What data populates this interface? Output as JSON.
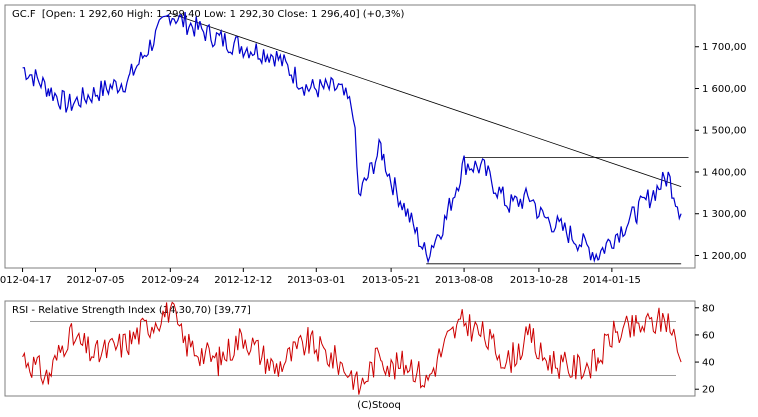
{
  "header": {
    "symbol": "GC.F",
    "ohlc_text": "[Open: 1 292,60  High: 1 299,40  Low: 1 292,30  Close: 1 296,40] (+0,3%)"
  },
  "rsi": {
    "label": "RSI - Relative Strength Index (14,30,70) [39,77]"
  },
  "footer": {
    "credit": "(C)Stooq"
  },
  "colors": {
    "price_line": "#0000cc",
    "rsi_line": "#cc0000",
    "trend": "#000000",
    "frame": "#7f7f7f"
  },
  "chart_data": [
    {
      "type": "line",
      "x_tick_labels": [
        "2012-04-17",
        "2012-07-05",
        "2012-09-24",
        "2012-12-12",
        "2013-03-01",
        "2013-05-21",
        "2013-08-08",
        "2013-10-28",
        "2014-01-15"
      ],
      "y_tick_labels": [
        "1 200,00",
        "1 300,00",
        "1 400,00",
        "1 500,00",
        "1 600,00",
        "1 700,00"
      ],
      "y_ticks": [
        1200,
        1300,
        1400,
        1500,
        1600,
        1700
      ],
      "ylim": [
        1170,
        1800
      ],
      "axis_position": "right",
      "x": [
        "2012-04-17",
        "2012-05-15",
        "2012-06-05",
        "2012-07-05",
        "2012-08-10",
        "2012-09-24",
        "2012-10-08",
        "2012-11-15",
        "2012-12-12",
        "2013-01-15",
        "2013-02-20",
        "2013-03-25",
        "2013-04-10",
        "2013-04-16",
        "2013-05-10",
        "2013-05-21",
        "2013-06-10",
        "2013-06-28",
        "2013-07-20",
        "2013-08-08",
        "2013-08-28",
        "2013-09-25",
        "2013-10-20",
        "2013-10-28",
        "2013-12-01",
        "2013-12-31",
        "2014-01-15",
        "2014-02-10",
        "2014-03-17",
        "2014-03-31"
      ],
      "series": [
        {
          "values": [
            1650,
            1600,
            1560,
            1590,
            1620,
            1780,
            1760,
            1720,
            1700,
            1680,
            1600,
            1600,
            1550,
            1340,
            1460,
            1380,
            1290,
            1200,
            1290,
            1420,
            1410,
            1320,
            1340,
            1300,
            1250,
            1200,
            1240,
            1300,
            1390,
            1300
          ]
        }
      ],
      "annotations": {
        "trendline": [
          [
            "2012-09-24",
            1780
          ],
          [
            "2014-03-31",
            1365
          ]
        ],
        "resistance": [
          [
            "2013-08-08",
            1435
          ],
          [
            "2014-04-08",
            1435
          ]
        ],
        "support": [
          [
            "2013-06-28",
            1180
          ],
          [
            "2014-03-31",
            1180
          ]
        ]
      }
    },
    {
      "type": "line",
      "y_tick_labels": [
        "20",
        "40",
        "60",
        "80"
      ],
      "y_ticks": [
        20,
        40,
        60,
        80
      ],
      "ylim": [
        15,
        85
      ],
      "axis_position": "right",
      "levels": [
        30,
        70
      ],
      "x": [
        "2012-04-17",
        "2012-05-15",
        "2012-06-05",
        "2012-07-05",
        "2012-08-10",
        "2012-09-24",
        "2012-10-08",
        "2012-11-15",
        "2012-12-12",
        "2013-01-15",
        "2013-02-20",
        "2013-03-25",
        "2013-04-10",
        "2013-04-16",
        "2013-05-10",
        "2013-05-21",
        "2013-06-10",
        "2013-06-28",
        "2013-07-20",
        "2013-08-08",
        "2013-08-28",
        "2013-09-25",
        "2013-10-20",
        "2013-10-28",
        "2013-12-01",
        "2013-12-31",
        "2014-01-15",
        "2014-02-10",
        "2014-03-17",
        "2014-03-31"
      ],
      "series": [
        {
          "values": [
            45,
            28,
            60,
            45,
            55,
            80,
            55,
            40,
            60,
            35,
            55,
            40,
            30,
            20,
            48,
            35,
            40,
            25,
            55,
            70,
            60,
            40,
            60,
            45,
            35,
            40,
            60,
            65,
            72,
            40
          ]
        }
      ]
    }
  ]
}
